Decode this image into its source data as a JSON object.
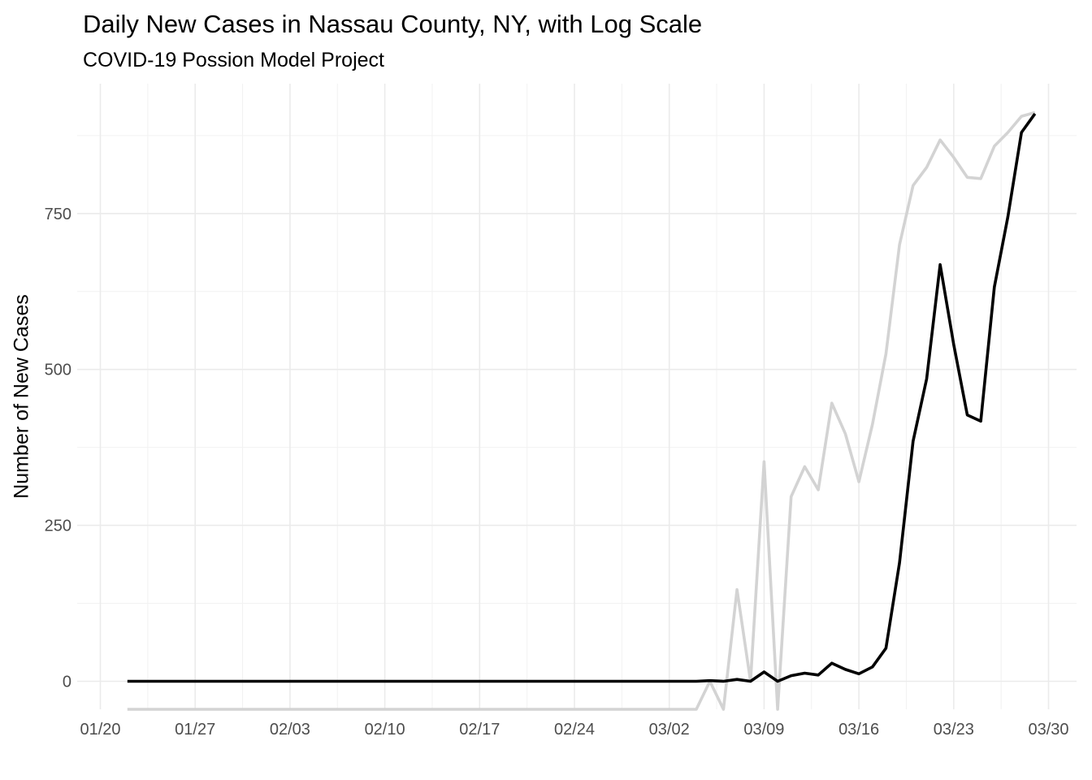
{
  "chart_data": {
    "type": "line",
    "title": "Daily New Cases in Nassau County, NY, with Log Scale",
    "subtitle": "COVID-19 Possion Model Project",
    "ylabel": "Number of New Cases",
    "x_ticks": [
      "01/20",
      "01/27",
      "02/03",
      "02/10",
      "02/17",
      "02/24",
      "03/02",
      "03/09",
      "03/16",
      "03/23",
      "03/30"
    ],
    "y_ticks": [
      "0",
      "250",
      "500",
      "750"
    ],
    "x_range": [
      "2020-01-20",
      "2020-03-31"
    ],
    "ylim": [
      -45,
      950
    ],
    "grid": true,
    "legend": "none",
    "series": [
      {
        "color": "#000000",
        "points": [
          [
            "2020-01-22",
            0
          ],
          [
            "2020-03-04",
            0
          ],
          [
            "2020-03-05",
            1
          ],
          [
            "2020-03-06",
            0
          ],
          [
            "2020-03-07",
            3
          ],
          [
            "2020-03-08",
            0
          ],
          [
            "2020-03-09",
            15
          ],
          [
            "2020-03-10",
            0
          ],
          [
            "2020-03-11",
            9
          ],
          [
            "2020-03-12",
            13
          ],
          [
            "2020-03-13",
            10
          ],
          [
            "2020-03-14",
            29
          ],
          [
            "2020-03-15",
            19
          ],
          [
            "2020-03-16",
            12
          ],
          [
            "2020-03-17",
            23
          ],
          [
            "2020-03-18",
            53
          ],
          [
            "2020-03-19",
            190
          ],
          [
            "2020-03-20",
            385
          ],
          [
            "2020-03-21",
            485
          ],
          [
            "2020-03-22",
            668
          ],
          [
            "2020-03-23",
            540
          ],
          [
            "2020-03-24",
            427
          ],
          [
            "2020-03-25",
            417
          ],
          [
            "2020-03-26",
            632
          ],
          [
            "2020-03-27",
            745
          ],
          [
            "2020-03-28",
            880
          ],
          [
            "2020-03-29",
            910
          ]
        ]
      },
      {
        "color": "#d3d3d3",
        "points": [
          [
            "2020-01-22",
            -45
          ],
          [
            "2020-03-04",
            -45
          ],
          [
            "2020-03-05",
            0
          ],
          [
            "2020-03-06",
            -45
          ],
          [
            "2020-03-07",
            147
          ],
          [
            "2020-03-08",
            0
          ],
          [
            "2020-03-09",
            352
          ],
          [
            "2020-03-10",
            -45
          ],
          [
            "2020-03-11",
            296
          ],
          [
            "2020-03-12",
            344
          ],
          [
            "2020-03-13",
            307
          ],
          [
            "2020-03-14",
            446
          ],
          [
            "2020-03-15",
            397
          ],
          [
            "2020-03-16",
            320
          ],
          [
            "2020-03-17",
            412
          ],
          [
            "2020-03-18",
            525
          ],
          [
            "2020-03-19",
            700
          ],
          [
            "2020-03-20",
            795
          ],
          [
            "2020-03-21",
            824
          ],
          [
            "2020-03-22",
            868
          ],
          [
            "2020-03-23",
            840
          ],
          [
            "2020-03-24",
            808
          ],
          [
            "2020-03-25",
            806
          ],
          [
            "2020-03-26",
            858
          ],
          [
            "2020-03-27",
            880
          ],
          [
            "2020-03-28",
            906
          ],
          [
            "2020-03-29",
            912
          ]
        ]
      }
    ]
  }
}
